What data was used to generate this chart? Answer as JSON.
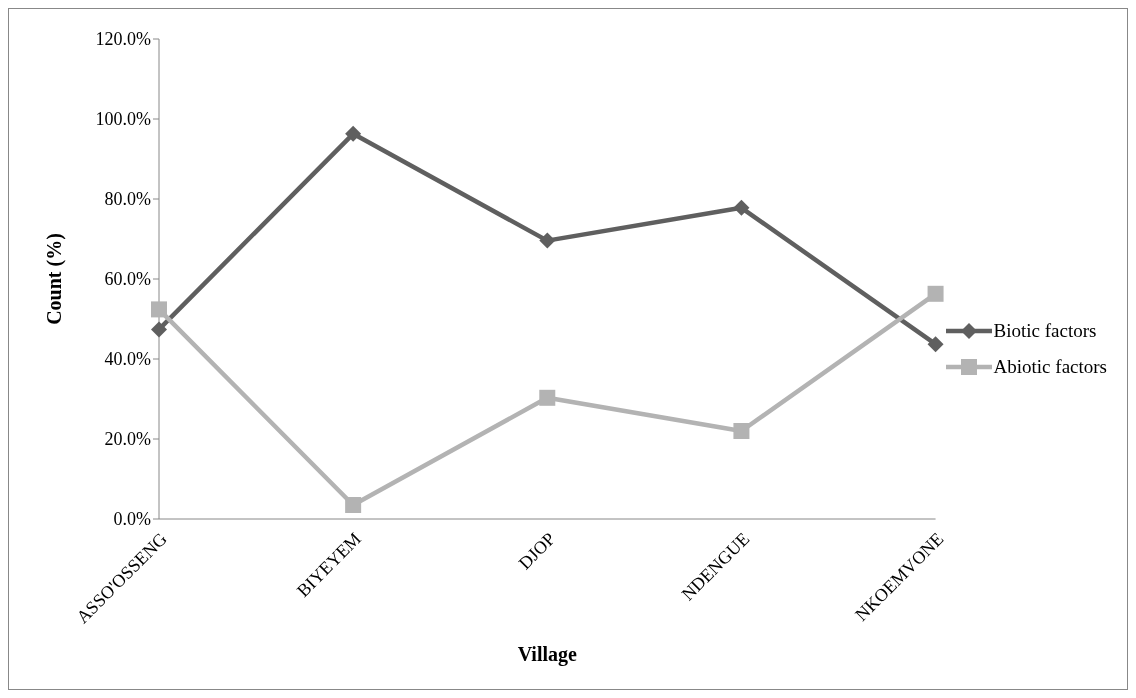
{
  "chart_data": {
    "type": "line",
    "xlabel": "Village",
    "ylabel": "Count (%)",
    "categories": [
      "ASSO'OSSENG",
      "BIYEYEM",
      "DJOP",
      "NDENGUE",
      "NKOEMVONE"
    ],
    "series": [
      {
        "name": "Biotic factors",
        "color": "#5f5f5f",
        "marker": "diamond",
        "values": [
          47.4,
          96.3,
          69.6,
          77.8,
          43.7
        ]
      },
      {
        "name": "Abiotic factors",
        "color": "#b3b3b3",
        "marker": "square",
        "values": [
          52.4,
          3.5,
          30.3,
          22.0,
          56.3
        ]
      }
    ],
    "ylim": [
      0,
      120
    ],
    "yticks": [
      {
        "value": 0,
        "label": "0.0%"
      },
      {
        "value": 20,
        "label": "20.0%"
      },
      {
        "value": 40,
        "label": "40.0%"
      },
      {
        "value": 60,
        "label": "60.0%"
      },
      {
        "value": 80,
        "label": "80.0%"
      },
      {
        "value": 100,
        "label": "100.0%"
      },
      {
        "value": 120,
        "label": "120.0%"
      }
    ],
    "grid": false,
    "legend": "right",
    "line_style": "solid"
  }
}
